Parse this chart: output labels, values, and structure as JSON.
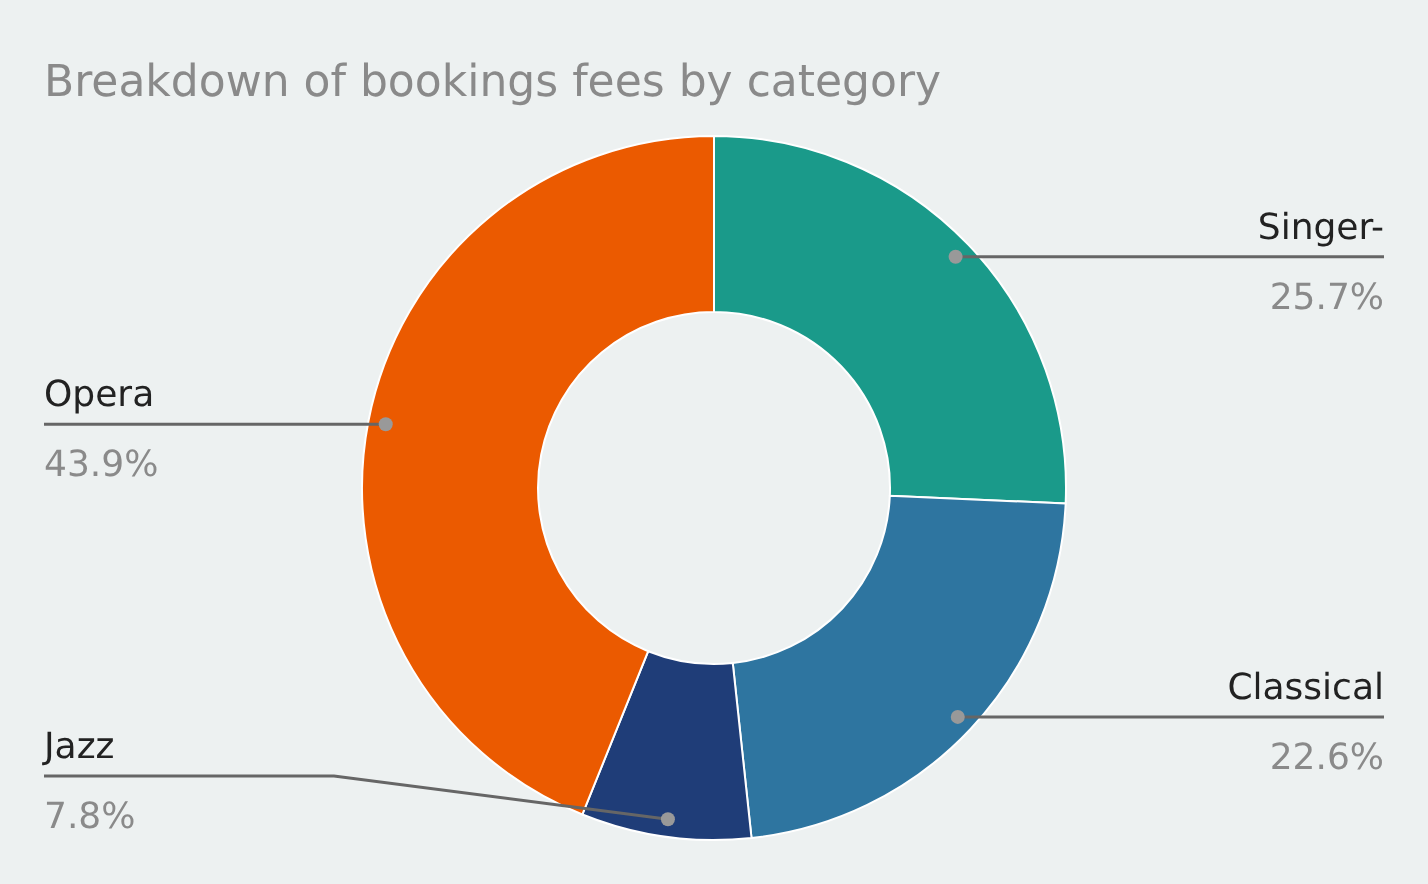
{
  "chart_data": {
    "type": "donut",
    "title": "Breakdown of bookings fees by category",
    "categories": [
      "Singer-",
      "Classical",
      "Jazz",
      "Opera"
    ],
    "values": [
      25.7,
      22.6,
      7.8,
      43.9
    ],
    "colors": [
      "#1a9a8a",
      "#2e75a0",
      "#1f3d78",
      "#eb5a00"
    ],
    "value_labels": [
      "25.7%",
      "22.6%",
      "7.8%",
      "43.9%"
    ]
  }
}
